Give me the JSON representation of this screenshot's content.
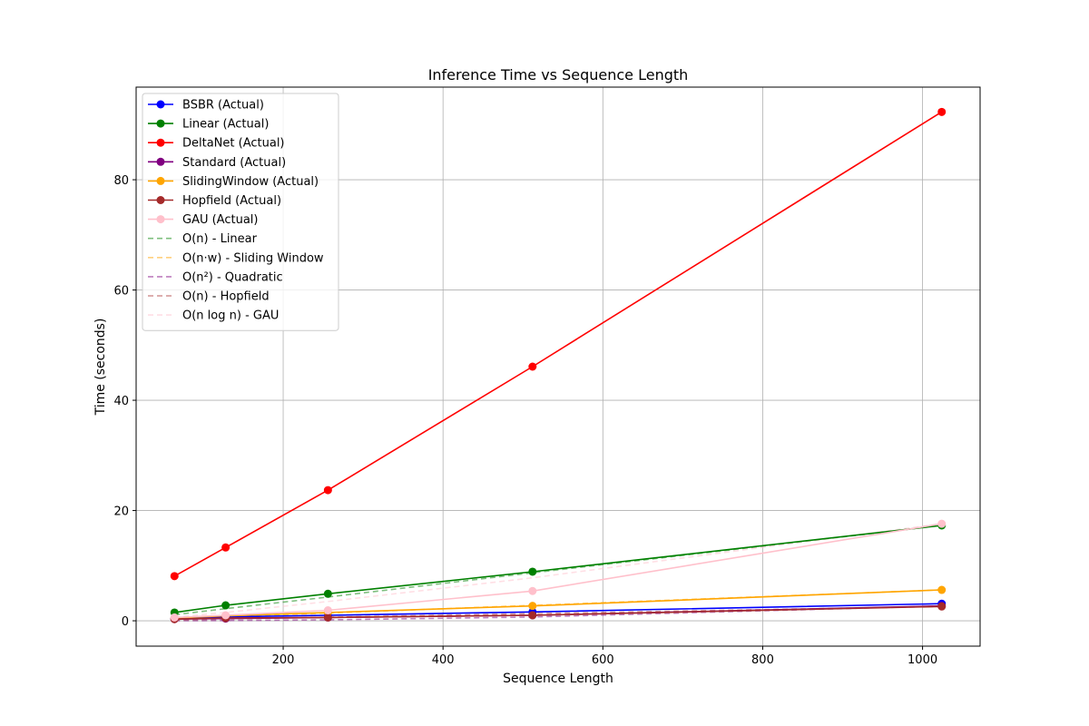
{
  "chart_data": {
    "type": "line",
    "title": "Inference Time vs Sequence Length",
    "xlabel": "Sequence Length",
    "ylabel": "Time (seconds)",
    "xlim": [
      16,
      1072
    ],
    "ylim": [
      -4.6,
      96.8
    ],
    "xticks": [
      200,
      400,
      600,
      800,
      1000
    ],
    "yticks": [
      0,
      20,
      40,
      60,
      80
    ],
    "grid": true,
    "legend_position": "upper-left",
    "x": [
      64,
      128,
      256,
      512,
      1024
    ],
    "series": [
      {
        "name": "BSBR (Actual)",
        "color": "#0000ff",
        "style": "solid",
        "marker": true,
        "values": [
          0.4,
          0.7,
          1.0,
          1.6,
          3.1
        ]
      },
      {
        "name": "Linear (Actual)",
        "color": "#008000",
        "style": "solid",
        "marker": true,
        "values": [
          1.5,
          2.8,
          4.9,
          8.9,
          17.3
        ]
      },
      {
        "name": "DeltaNet (Actual)",
        "color": "#ff0000",
        "style": "solid",
        "marker": true,
        "values": [
          8.1,
          13.3,
          23.7,
          46.1,
          92.3
        ]
      },
      {
        "name": "Standard (Actual)",
        "color": "#800080",
        "style": "solid",
        "marker": true,
        "values": [
          0.3,
          0.4,
          0.6,
          1.0,
          2.7
        ]
      },
      {
        "name": "SlidingWindow (Actual)",
        "color": "#ffa500",
        "style": "solid",
        "marker": true,
        "values": [
          0.5,
          0.9,
          1.5,
          2.7,
          5.6
        ]
      },
      {
        "name": "Hopfield (Actual)",
        "color": "#a52a2a",
        "style": "solid",
        "marker": true,
        "values": [
          0.3,
          0.5,
          0.6,
          1.0,
          2.6
        ]
      },
      {
        "name": "GAU (Actual)",
        "color": "#ffc0cb",
        "style": "solid",
        "marker": true,
        "values": [
          0.6,
          1.0,
          1.9,
          5.4,
          17.6
        ]
      },
      {
        "name": "O(n) - Linear",
        "color": "#008000",
        "style": "dashed",
        "marker": false,
        "values": [
          1.1,
          2.2,
          4.3,
          8.7,
          17.3
        ]
      },
      {
        "name": "O(n·w) - Sliding Window",
        "color": "#ffa500",
        "style": "dashed",
        "marker": false,
        "values": [
          0.35,
          0.7,
          1.4,
          2.8,
          5.6
        ]
      },
      {
        "name": "O(n²) - Quadratic",
        "color": "#800080",
        "style": "dashed",
        "marker": false,
        "values": [
          0.01,
          0.04,
          0.17,
          0.68,
          2.7
        ]
      },
      {
        "name": "O(n) - Hopfield",
        "color": "#a52a2a",
        "style": "dashed",
        "marker": false,
        "values": [
          0.16,
          0.33,
          0.65,
          1.3,
          2.6
        ]
      },
      {
        "name": "O(n log n) - GAU",
        "color": "#ffc0cb",
        "style": "dashed",
        "marker": false,
        "values": [
          0.65,
          1.5,
          3.5,
          7.8,
          17.6
        ]
      }
    ]
  }
}
